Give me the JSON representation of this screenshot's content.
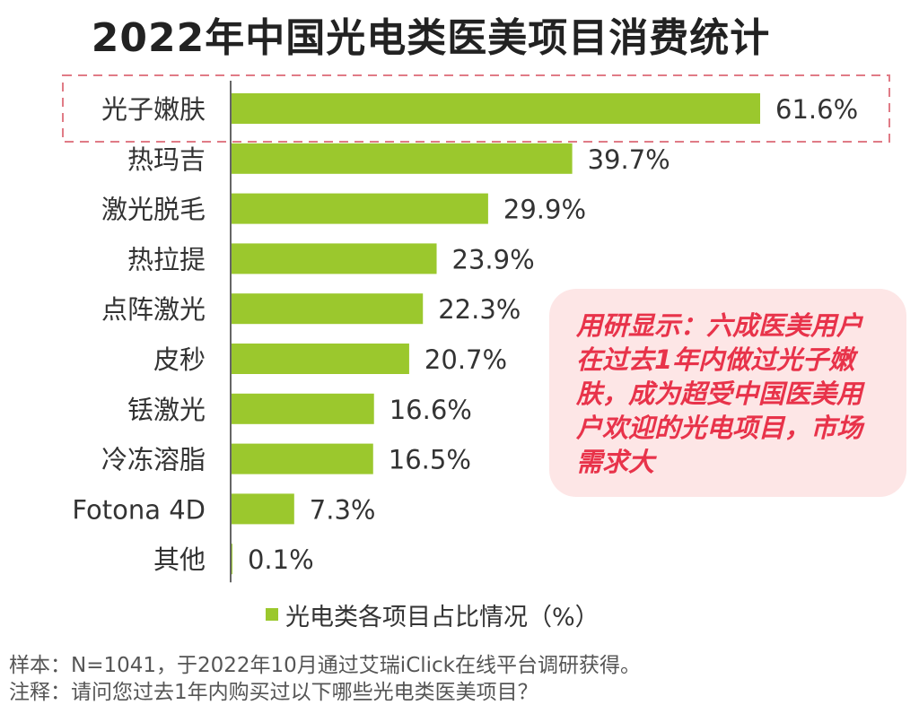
{
  "title": "2022年中国光电类医美项目消费统计",
  "chart_data": {
    "type": "bar",
    "orientation": "horizontal",
    "categories": [
      "光子嫩肤",
      "热玛吉",
      "激光脱毛",
      "热拉提",
      "点阵激光",
      "皮秒",
      "铥激光",
      "冷冻溶脂",
      "Fotona 4D",
      "其他"
    ],
    "series": [
      {
        "name": "光电类各项目占比情况（%）",
        "values": [
          61.6,
          39.7,
          29.9,
          23.9,
          22.3,
          20.7,
          16.6,
          16.5,
          7.3,
          0.1
        ],
        "labels": [
          "61.6%",
          "39.7%",
          "29.9%",
          "23.9%",
          "22.3%",
          "20.7%",
          "16.6%",
          "16.5%",
          "7.3%",
          "0.1%"
        ]
      }
    ],
    "highlighted_category": "光子嫩肤",
    "xlim": [
      0,
      62
    ],
    "grid": false,
    "legend_position": "bottom",
    "bar_color": "#9bc82d",
    "highlight_color": "#e07b86"
  },
  "callout": {
    "text": "用研显示：六成医美用户在过去1年内做过光子嫩肤，成为超受中国医美用户欢迎的光电项目，市场需求大",
    "color": "#e8334a",
    "background": "#fde6e6"
  },
  "legend": {
    "label": "光电类各项目占比情况（%）"
  },
  "footnotes": {
    "sample": "样本：N=1041，于2022年10月通过艾瑞iClick在线平台调研获得。",
    "note": "注释：请问您过去1年内购买过以下哪些光电类医美项目？"
  }
}
